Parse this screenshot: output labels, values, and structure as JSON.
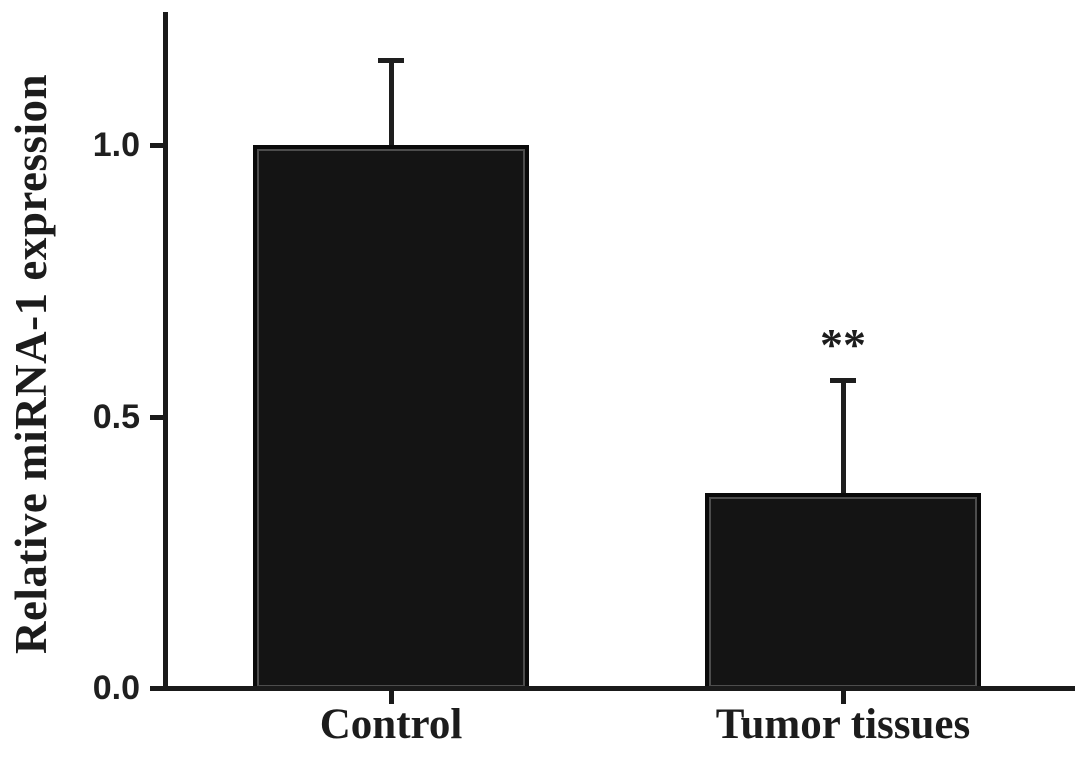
{
  "figure": {
    "background": "#ffffff"
  },
  "chart_data": {
    "type": "bar",
    "title": "",
    "xlabel": "",
    "ylabel": "Relative miRNA-1 expression",
    "categories": [
      "Control",
      "Tumor tissues"
    ],
    "values": [
      1.0,
      0.36
    ],
    "error_sd_upper": [
      0.16,
      0.21
    ],
    "error_bar_tops": [
      1.16,
      0.57
    ],
    "yticks": [
      0.0,
      0.5,
      1.0
    ],
    "ytick_labels": [
      "0.0",
      "0.5",
      "1.0"
    ],
    "ylim": [
      0,
      1.24
    ],
    "grid": false,
    "legend": "none",
    "bar_color": "#141414",
    "bar_border_color": "#0a0a0a",
    "axis_color": "#1a1a1a",
    "significance_annotations": [
      {
        "category": "Tumor tissues",
        "label": "**"
      }
    ]
  }
}
